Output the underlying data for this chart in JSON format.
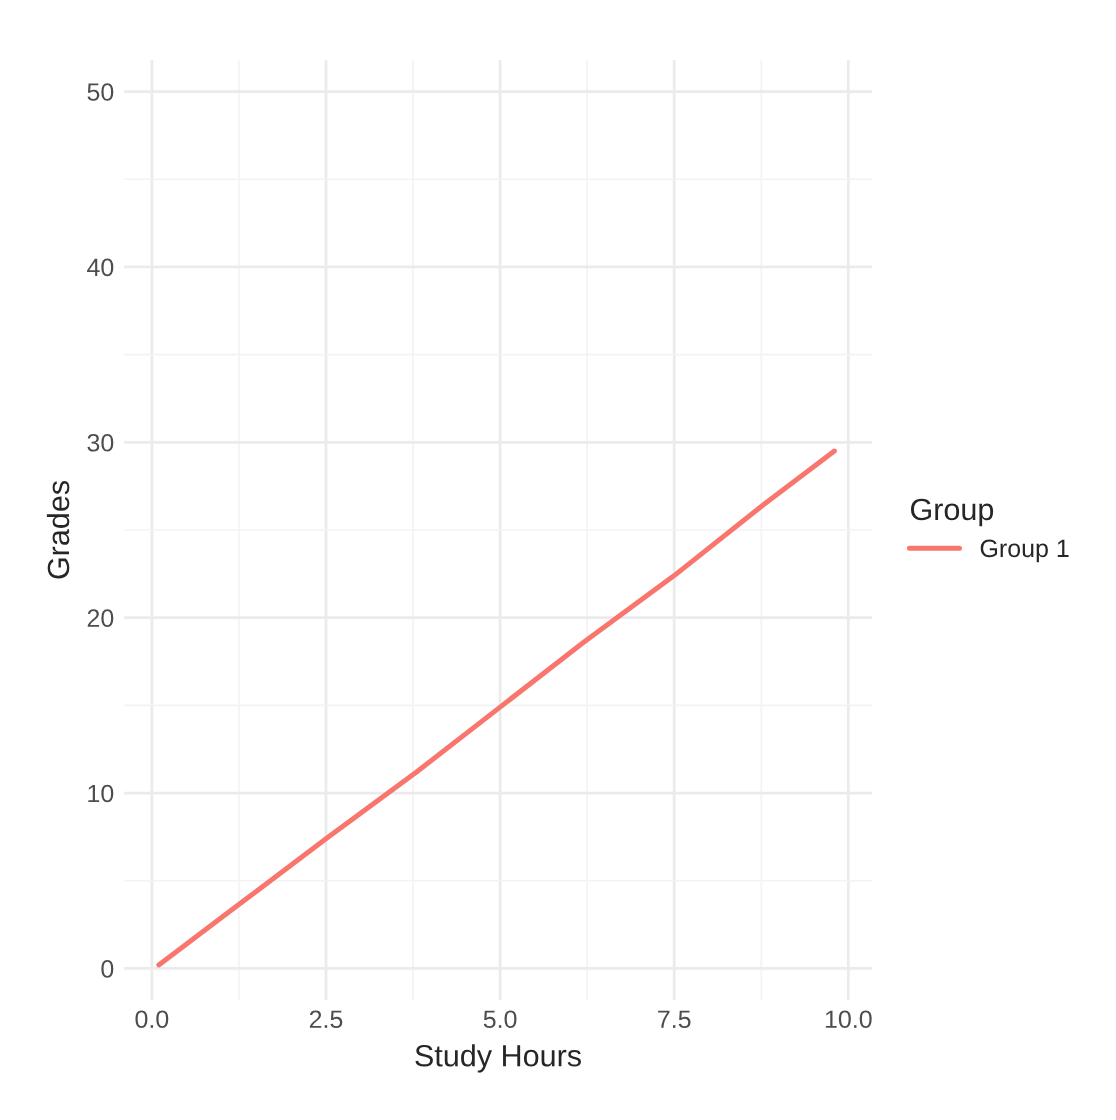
{
  "chart_data": {
    "type": "line",
    "xlabel": "Study Hours",
    "ylabel": "Grades",
    "legend_title": "Group",
    "x": [
      0.1,
      1.2,
      2.5,
      3.8,
      5.0,
      6.2,
      7.5,
      8.8,
      9.8
    ],
    "series": [
      {
        "name": "Group 1",
        "color": "#f8766d",
        "values": [
          0.2,
          3.5,
          7.4,
          11.2,
          14.9,
          18.6,
          22.4,
          26.5,
          29.5
        ]
      }
    ],
    "xlim": [
      -0.4,
      10.34
    ],
    "ylim": [
      -1.8,
      51.8
    ],
    "xticks": [
      {
        "value": 0,
        "label": "0.0"
      },
      2.5,
      {
        "value": 5,
        "label": "5.0"
      },
      7.5,
      {
        "value": 10,
        "label": "10.0"
      }
    ],
    "yticks": [
      0,
      10,
      20,
      30,
      40,
      50
    ],
    "grid": true,
    "legend": "right",
    "line_style": "solid",
    "marker": "none"
  }
}
